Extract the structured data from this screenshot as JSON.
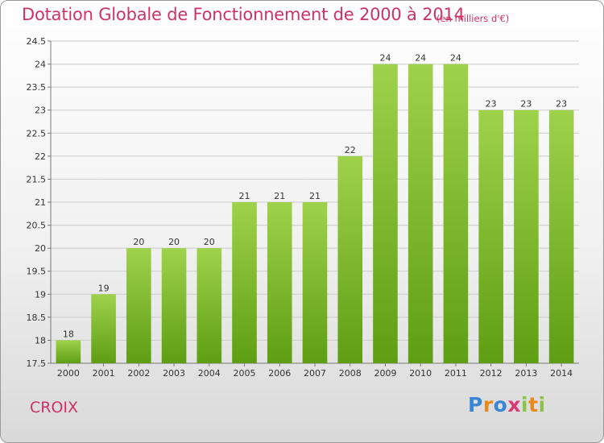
{
  "header": {
    "title": "Dotation Globale de Fonctionnement de 2000 à 2014",
    "unit": "(en milliers d'€)"
  },
  "footer": {
    "commune": "CROIX",
    "logo": "Proxiti"
  },
  "colors": {
    "title": "#cc3366",
    "bar_light": "#9fd24b",
    "bar_dark": "#5e9e13",
    "grid": "#cccccc"
  },
  "chart_data": {
    "type": "bar",
    "categories": [
      "2000",
      "2001",
      "2002",
      "2003",
      "2004",
      "2005",
      "2006",
      "2007",
      "2008",
      "2009",
      "2010",
      "2011",
      "2012",
      "2013",
      "2014"
    ],
    "values": [
      18,
      19,
      20,
      20,
      20,
      21,
      21,
      21,
      22,
      24,
      24,
      24,
      23,
      23,
      23
    ],
    "value_labels": [
      "18",
      "19",
      "20",
      "20",
      "20",
      "21",
      "21",
      "21",
      "22",
      "24",
      "24",
      "24",
      "23",
      "23",
      "23"
    ],
    "title": "Dotation Globale de Fonctionnement de 2000 à 2014",
    "xlabel": "",
    "ylabel": "",
    "ylim": [
      17.5,
      24.5
    ],
    "yticks": [
      "17.5",
      "18",
      "18.5",
      "19",
      "19.5",
      "20",
      "20.5",
      "21",
      "21.5",
      "22",
      "22.5",
      "23",
      "23.5",
      "24",
      "24.5"
    ],
    "grid": true,
    "legend": "none"
  }
}
